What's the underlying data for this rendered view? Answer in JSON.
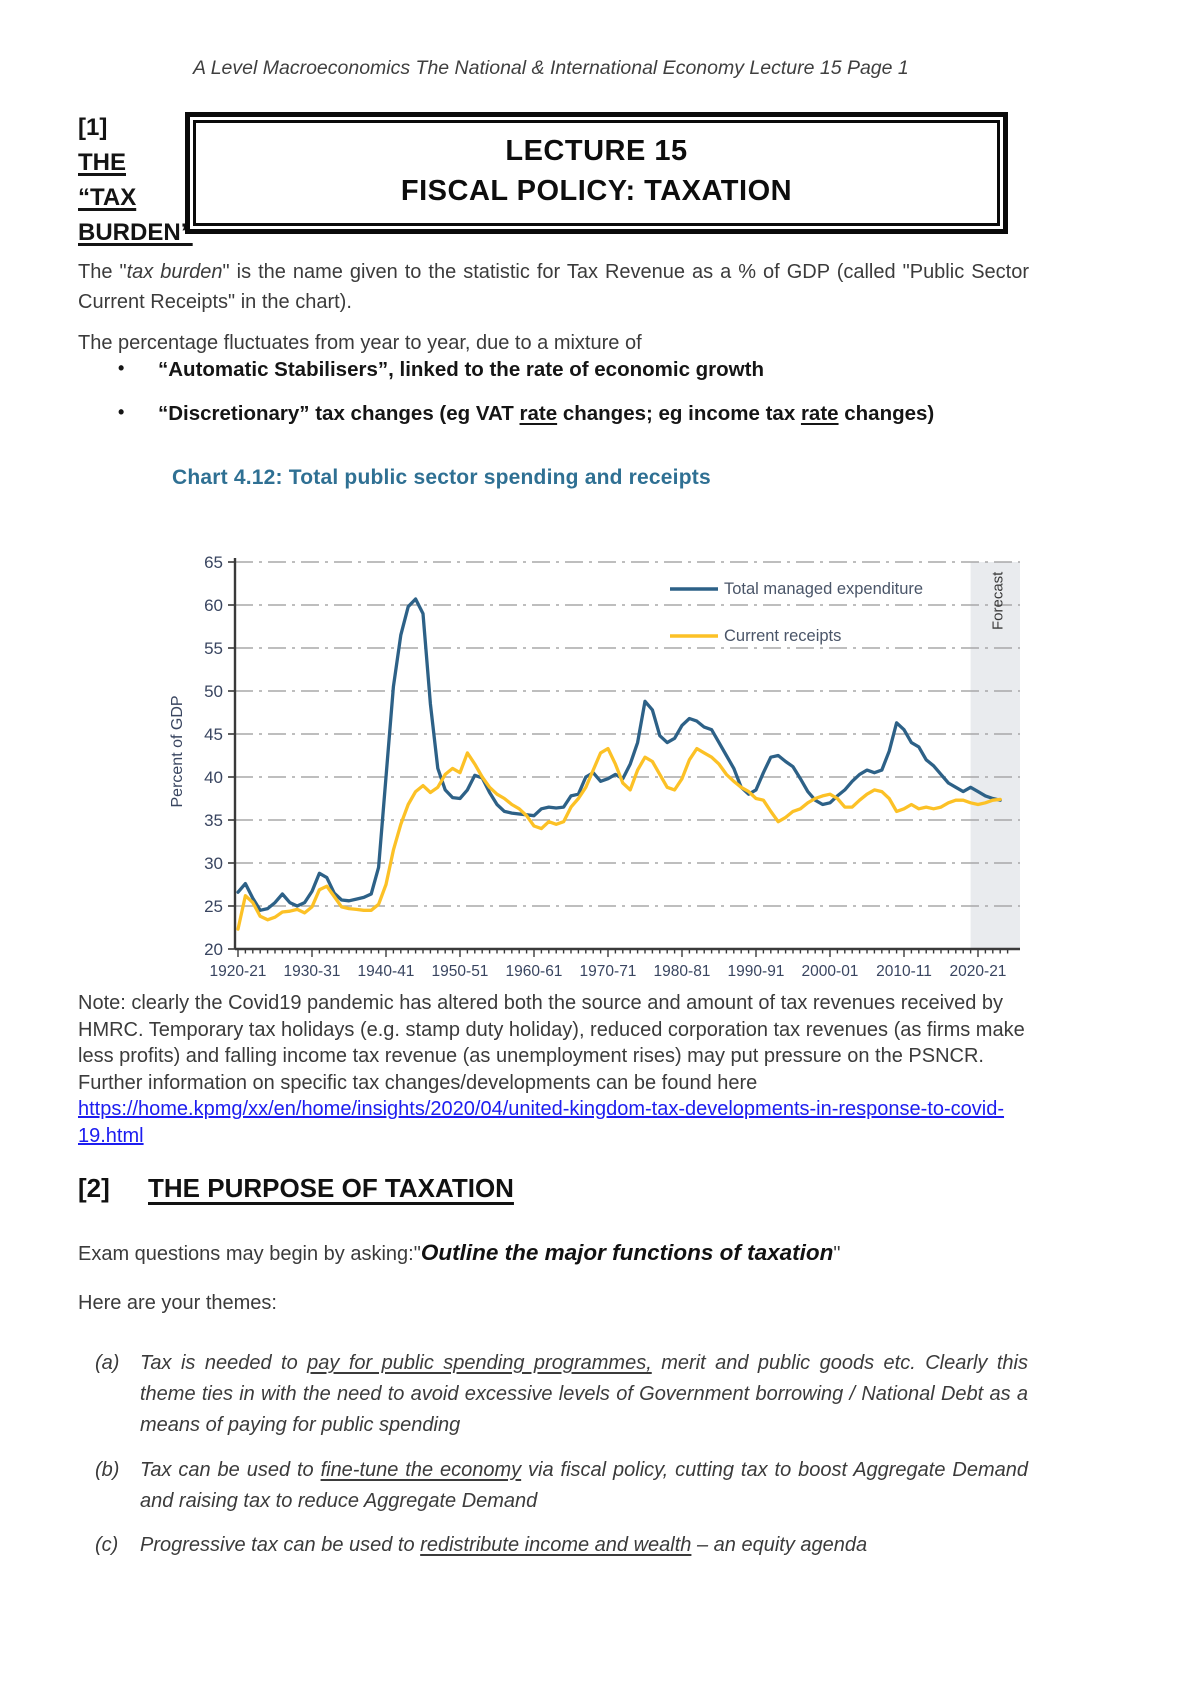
{
  "header": {
    "text": "A Level Macroeconomics  The National & International Economy  Lecture 15 Page 1"
  },
  "section1": {
    "number": "[1]",
    "line1": "THE",
    "line2": "“TAX",
    "line3": "BURDEN”"
  },
  "title_box": {
    "line1": "LECTURE 15",
    "line2": "FISCAL POLICY: TAXATION"
  },
  "para1": {
    "pre": "The \"",
    "em": "tax burden",
    "post": "\" is the name given to the statistic for Tax Revenue as a % of GDP (called \"Public Sector Current Receipts\" in the chart)."
  },
  "para2": {
    "text": "The percentage fluctuates from year to year, due to a mixture of"
  },
  "bullets": [
    {
      "marker": "•",
      "pre": "“Automatic Stabilisers”, linked to the rate of economic growth",
      "u1": "",
      "mid": "",
      "u2": "",
      "post": ""
    },
    {
      "marker": "•",
      "pre": "“Discretionary” tax changes (eg VAT ",
      "u1": "rate",
      "mid": " changes; eg income tax ",
      "u2": "rate",
      "post": " changes)"
    }
  ],
  "note": {
    "pre": "Note: clearly the Covid19 pandemic has altered both the source and amount of tax revenues received by HMRC. Temporary tax holidays (e.g. stamp duty holiday), reduced corporation tax revenues (as firms make less profits) and falling income tax revenue (as unemployment rises) may put pressure on the PSNCR. Further information on specific tax changes/developments can be found here ",
    "link": "https://home.kpmg/xx/en/home/insights/2020/04/united-kingdom-tax-developments-in-response-to-covid-19.html"
  },
  "section2": {
    "number": "[2]",
    "title": "THE PURPOSE OF TAXATION"
  },
  "exam": {
    "pre": "Exam questions may begin by asking:\"",
    "emph": "Outline the major functions of taxation",
    "post": "\""
  },
  "themes_intro": {
    "text": "Here are your themes:"
  },
  "items": [
    {
      "label": "(a)",
      "pre": "Tax is needed to ",
      "u": "pay for public spending programmes,",
      "post": " merit and public goods etc. Clearly this theme ties in with the need to avoid excessive levels of Government borrowing / National Debt as a means of paying for public spending"
    },
    {
      "label": "(b)",
      "pre": "Tax can be used to ",
      "u": "fine-tune the economy",
      "post": " via fiscal policy, cutting tax to boost Aggregate Demand and raising tax to reduce Aggregate Demand"
    },
    {
      "label": "(c)",
      "pre": "Progressive tax can be used to ",
      "u": "redistribute income and wealth",
      "post": " – an equity agenda"
    }
  ],
  "chart_data": {
    "type": "line",
    "title": "Chart 4.12: Total public sector spending and receipts",
    "ylabel": "Percent of GDP",
    "ylim": [
      20,
      65
    ],
    "ytick_step": 5,
    "grid": true,
    "x_start_year": 1920,
    "x_step": 1,
    "x_range": [
      1920,
      2024
    ],
    "x_ticks": [
      {
        "label": "1920-21",
        "year": 1920
      },
      {
        "label": "1930-31",
        "year": 1930
      },
      {
        "label": "1940-41",
        "year": 1940
      },
      {
        "label": "1950-51",
        "year": 1950
      },
      {
        "label": "1960-61",
        "year": 1960
      },
      {
        "label": "1970-71",
        "year": 1970
      },
      {
        "label": "1980-81",
        "year": 1980
      },
      {
        "label": "1990-91",
        "year": 1990
      },
      {
        "label": "2000-01",
        "year": 2000
      },
      {
        "label": "2010-11",
        "year": 2010
      },
      {
        "label": "2020-21",
        "year": 2020
      }
    ],
    "forecast": {
      "label": "Forecast",
      "start_year": 2019
    },
    "legend_position": "top-center-inside",
    "series": [
      {
        "name": "Total managed expenditure",
        "color": "#2d6187",
        "values": [
          26.6,
          27.6,
          25.9,
          24.5,
          24.7,
          25.4,
          26.4,
          25.4,
          25.0,
          25.4,
          26.7,
          28.8,
          28.3,
          26.5,
          25.7,
          25.6,
          25.8,
          26.0,
          26.4,
          29.5,
          40.0,
          50.5,
          56.5,
          59.8,
          60.7,
          59.0,
          48.5,
          41.0,
          38.5,
          37.6,
          37.5,
          38.5,
          40.2,
          39.9,
          38.2,
          36.8,
          36.0,
          35.8,
          35.7,
          35.6,
          35.5,
          36.3,
          36.5,
          36.4,
          36.5,
          37.8,
          38.0,
          40.0,
          40.5,
          39.5,
          39.8,
          40.3,
          39.8,
          41.5,
          44.0,
          48.8,
          47.8,
          44.8,
          44.0,
          44.5,
          46.0,
          46.8,
          46.5,
          45.8,
          45.5,
          44.0,
          42.5,
          41.0,
          38.8,
          38.0,
          38.5,
          40.5,
          42.3,
          42.5,
          41.8,
          41.2,
          39.8,
          38.3,
          37.3,
          36.8,
          37.0,
          37.8,
          38.5,
          39.5,
          40.3,
          40.8,
          40.5,
          40.8,
          43.0,
          46.3,
          45.5,
          44.0,
          43.5,
          42.0,
          41.3,
          40.3,
          39.3,
          38.8,
          38.3,
          38.8,
          38.3,
          37.8,
          37.5,
          37.3
        ]
      },
      {
        "name": "Current receipts",
        "color": "#fcc126",
        "values": [
          22.3,
          26.2,
          25.4,
          23.8,
          23.4,
          23.7,
          24.3,
          24.4,
          24.6,
          24.2,
          24.9,
          26.9,
          27.3,
          26.1,
          24.9,
          24.7,
          24.6,
          24.5,
          24.5,
          25.2,
          27.5,
          31.5,
          34.5,
          36.8,
          38.3,
          39.0,
          38.2,
          38.8,
          40.3,
          41.0,
          40.5,
          42.8,
          41.5,
          40.0,
          38.8,
          38.0,
          37.5,
          36.8,
          36.3,
          35.5,
          34.3,
          34.0,
          34.8,
          34.5,
          34.8,
          36.5,
          37.5,
          38.8,
          40.8,
          42.8,
          43.3,
          41.5,
          39.3,
          38.5,
          40.8,
          42.3,
          41.8,
          40.3,
          38.8,
          38.5,
          39.8,
          42.0,
          43.3,
          42.8,
          42.3,
          41.5,
          40.3,
          39.5,
          38.8,
          38.3,
          37.5,
          37.3,
          36.0,
          34.8,
          35.3,
          36.0,
          36.3,
          37.0,
          37.5,
          37.8,
          38.0,
          37.5,
          36.5,
          36.5,
          37.3,
          38.0,
          38.5,
          38.3,
          37.5,
          36.0,
          36.3,
          36.8,
          36.3,
          36.5,
          36.3,
          36.5,
          37.0,
          37.3,
          37.3,
          37.0,
          36.8,
          37.0,
          37.3,
          37.4
        ]
      }
    ],
    "colors": {
      "grid": "#a8a8a8",
      "axis": "#3a3a3a",
      "tick_label": "#394560",
      "forecast_band": "#e9ebee",
      "title": "#2f7093",
      "legend_text": "#4a5568"
    }
  }
}
